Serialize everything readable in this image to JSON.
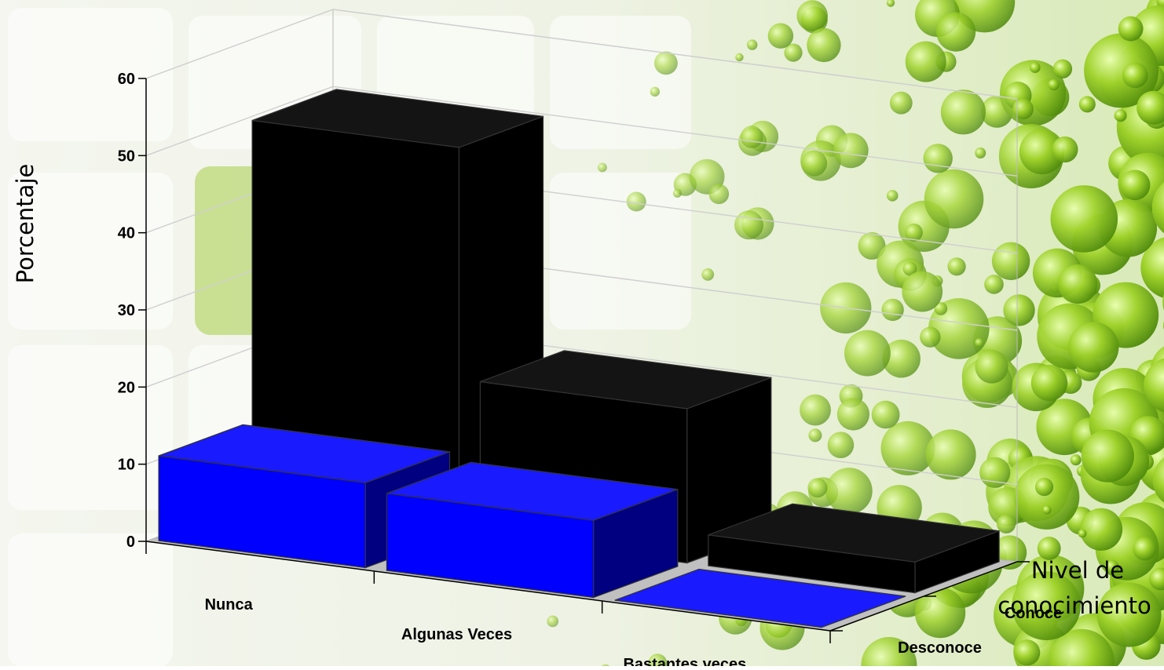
{
  "chart_data": {
    "type": "bar",
    "subtype": "3d-column",
    "title": "",
    "ylabel": "Porcentaje",
    "zlabel": [
      "Nivel de",
      "conocimiento"
    ],
    "xlabel": "",
    "ylim": [
      0,
      60
    ],
    "yticks": [
      "0",
      "10",
      "20",
      "30",
      "40",
      "50",
      "60"
    ],
    "categories": [
      "Nunca",
      "Algunas Veces",
      "Bastantes veces"
    ],
    "series": [
      {
        "name": "Desconoce",
        "color": "#0000ff",
        "values": [
          11,
          10,
          0
        ]
      },
      {
        "name": "Conoce",
        "color": "#000000",
        "values": [
          50,
          20,
          4
        ]
      }
    ],
    "grid": true,
    "floor_color": "#c0c0c0"
  }
}
